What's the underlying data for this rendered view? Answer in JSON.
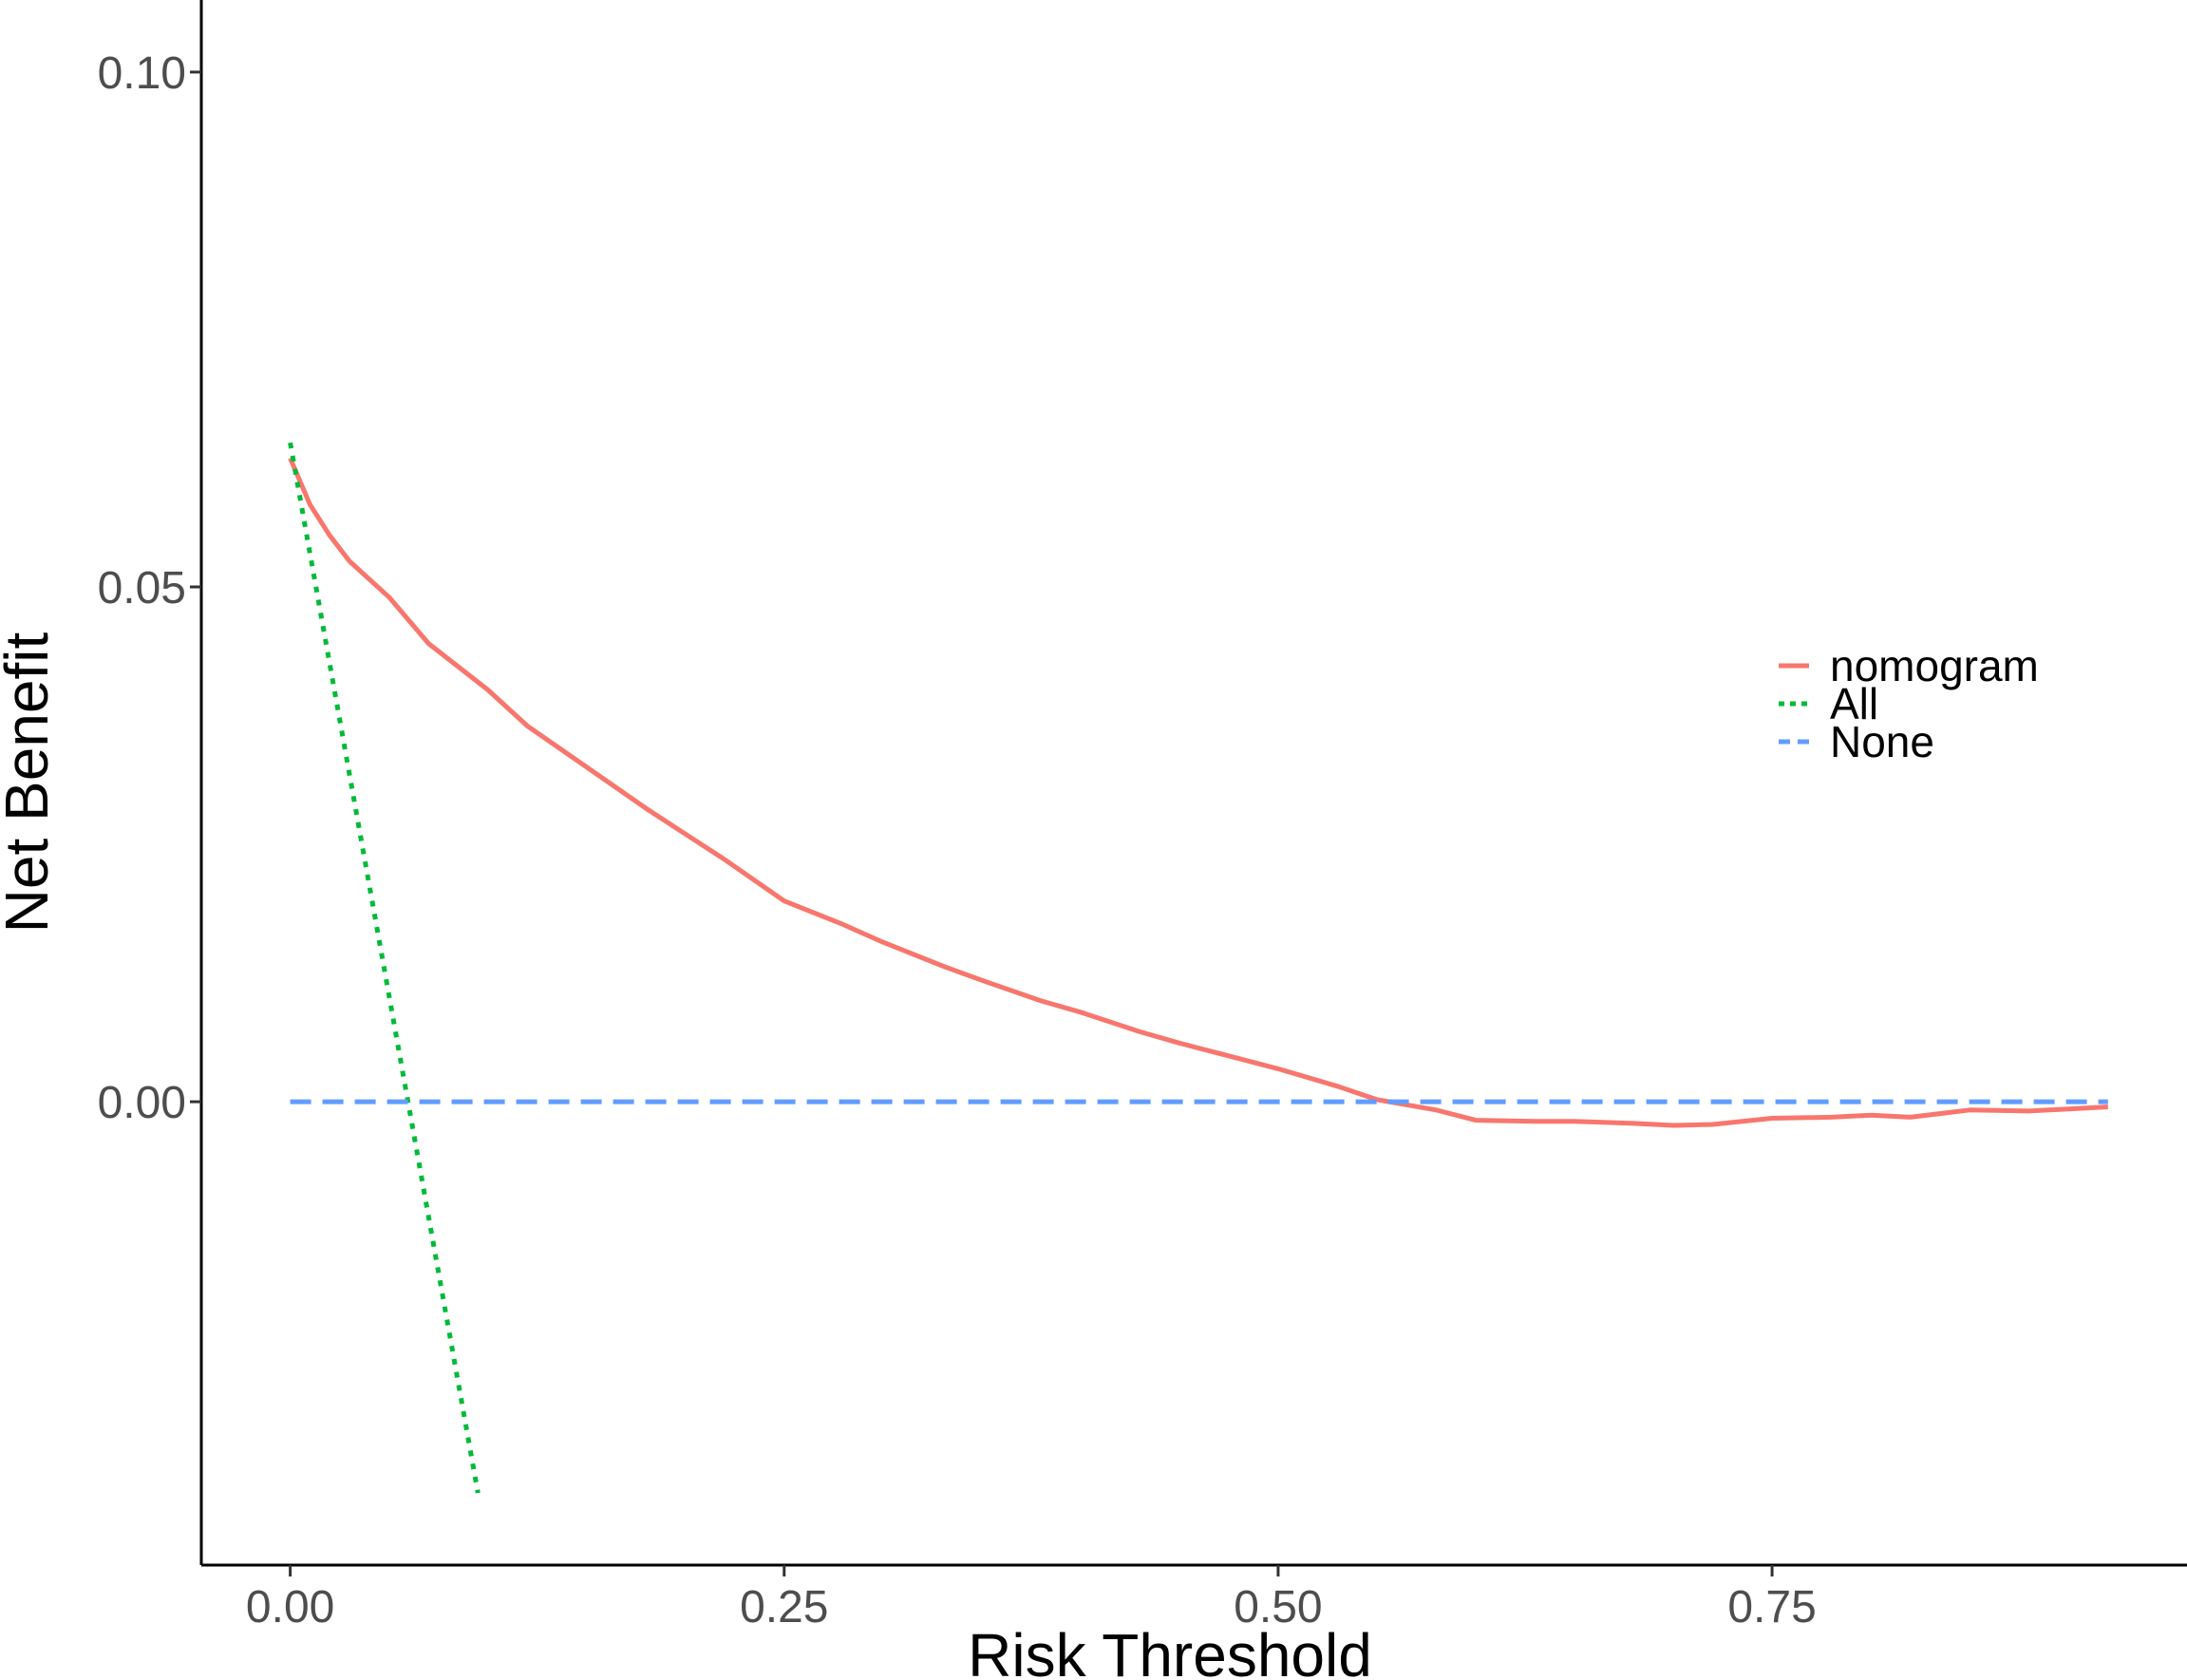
{
  "chart_data": {
    "type": "line",
    "title": "",
    "xlabel": "Risk Threshold",
    "ylabel": "Net Benefit",
    "xlim": [
      -0.045,
      0.96
    ],
    "ylim": [
      -0.045,
      0.107
    ],
    "x_ticks": [
      {
        "value": 0.0,
        "label": "0.00"
      },
      {
        "value": 0.25,
        "label": "0.25"
      },
      {
        "value": 0.5,
        "label": "0.50"
      },
      {
        "value": 0.75,
        "label": "0.75"
      }
    ],
    "y_ticks": [
      {
        "value": 0.0,
        "label": "0.00"
      },
      {
        "value": 0.05,
        "label": "0.05"
      },
      {
        "value": 0.1,
        "label": "0.10"
      }
    ],
    "grid": false,
    "legend_position": "right",
    "series": [
      {
        "name": "nomogram",
        "color": "#F8766D",
        "dash": "solid",
        "x": [
          0.0,
          0.01,
          0.02,
          0.03,
          0.05,
          0.07,
          0.1,
          0.12,
          0.15,
          0.18,
          0.2,
          0.22,
          0.25,
          0.28,
          0.3,
          0.33,
          0.35,
          0.38,
          0.4,
          0.43,
          0.45,
          0.48,
          0.5,
          0.53,
          0.55,
          0.58,
          0.6,
          0.63,
          0.65,
          0.68,
          0.7,
          0.72,
          0.75,
          0.78,
          0.8,
          0.82,
          0.85,
          0.88,
          0.9,
          0.92
        ],
        "y": [
          0.0625,
          0.058,
          0.055,
          0.0525,
          0.049,
          0.0445,
          0.04,
          0.0365,
          0.0325,
          0.0285,
          0.026,
          0.0235,
          0.0195,
          0.0172,
          0.0155,
          0.0132,
          0.0118,
          0.0098,
          0.0087,
          0.0068,
          0.0057,
          0.0042,
          0.0032,
          0.0015,
          0.0002,
          -0.0008,
          -0.0018,
          -0.0019,
          -0.0019,
          -0.0021,
          -0.0023,
          -0.0022,
          -0.0016,
          -0.0015,
          -0.0013,
          -0.0015,
          -0.0008,
          -0.0009,
          -0.0007,
          -0.0005
        ]
      },
      {
        "name": "All",
        "color": "#00BA38",
        "dash": "dotted",
        "x": [
          0.0,
          0.095
        ],
        "y": [
          0.064,
          -0.038
        ]
      },
      {
        "name": "None",
        "color": "#619CFF",
        "dash": "dashed",
        "x": [
          0.0,
          0.92
        ],
        "y": [
          0.0,
          0.0
        ]
      }
    ]
  }
}
